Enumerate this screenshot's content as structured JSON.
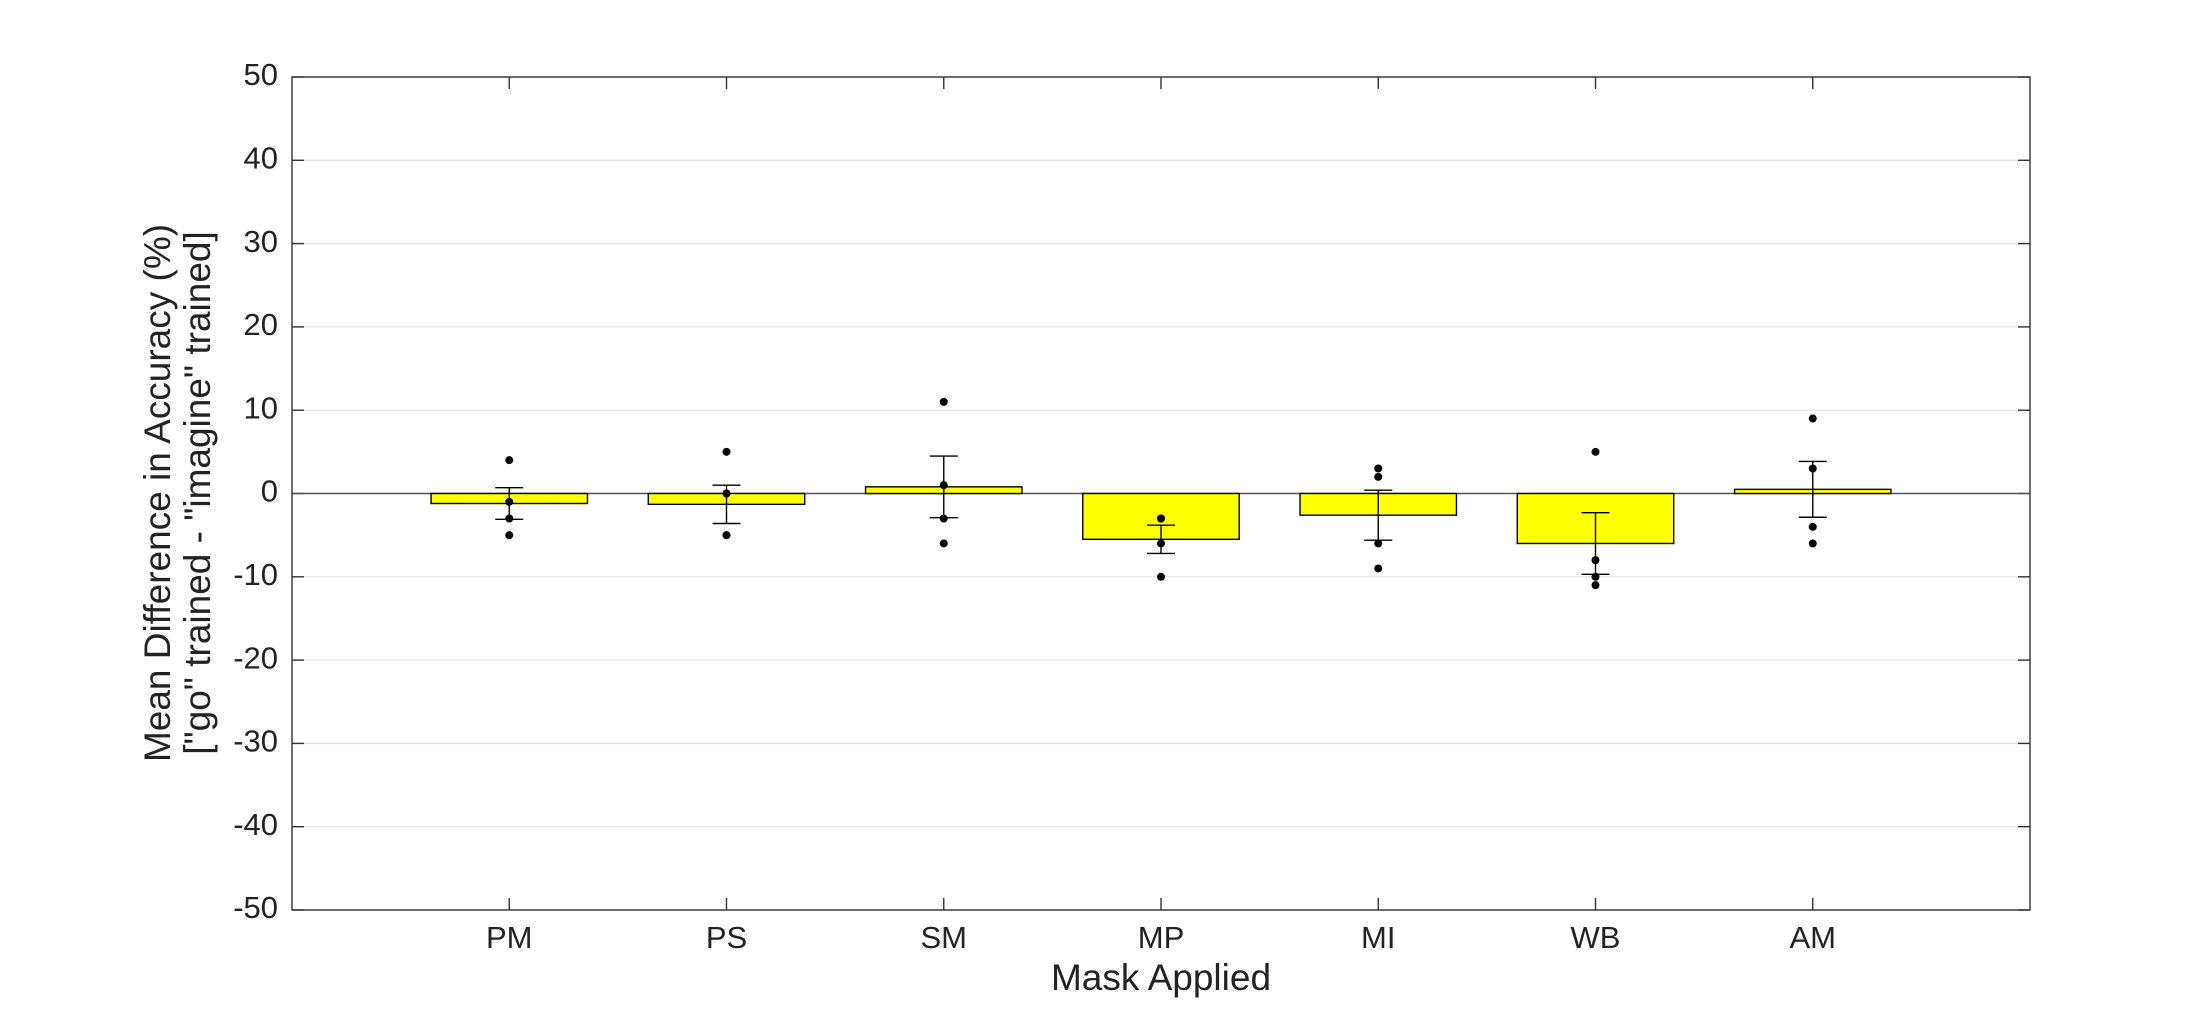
{
  "chart_data": {
    "type": "bar",
    "categories": [
      "PM",
      "PS",
      "SM",
      "MP",
      "MI",
      "WB",
      "AM"
    ],
    "values": [
      -1.2,
      -1.3,
      0.8,
      -5.5,
      -2.6,
      -6.0,
      0.5
    ],
    "errors": [
      1.9,
      2.3,
      3.7,
      1.7,
      3.0,
      3.7,
      3.35
    ],
    "points": [
      [
        4,
        -1,
        -3,
        -5
      ],
      [
        5,
        0,
        -5,
        -5
      ],
      [
        11,
        1,
        -3,
        -6
      ],
      [
        -3,
        -3,
        -6,
        -10
      ],
      [
        3,
        2,
        -6,
        -9
      ],
      [
        5,
        -8,
        -10,
        -11
      ],
      [
        9,
        3,
        -4,
        -6
      ]
    ],
    "color": "#ffff00",
    "xlabel": "Mask Applied",
    "ylabel": [
      "Mean Difference in Accuracy (%)",
      "[\"go\" trained - \"imagine\" trained]"
    ],
    "ylim": [
      -50,
      50
    ],
    "yticks": [
      -50,
      -40,
      -30,
      -20,
      -10,
      0,
      10,
      20,
      30,
      40,
      50
    ],
    "grid": true
  }
}
